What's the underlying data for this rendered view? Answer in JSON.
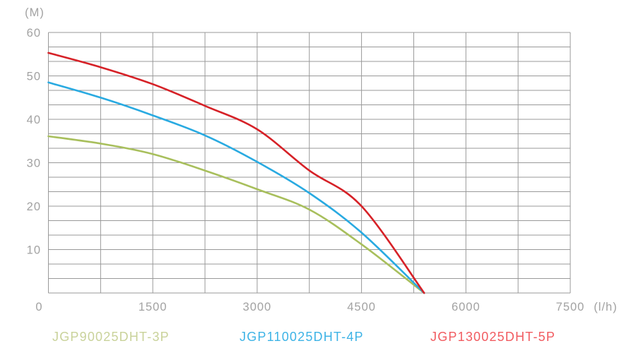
{
  "chart_data": {
    "type": "line",
    "title": "",
    "x_axis": {
      "unit_label": "(l/h)",
      "ticks": [
        0,
        1500,
        3000,
        4500,
        6000,
        7500
      ],
      "min": 0,
      "max": 7500,
      "grid_step": 750
    },
    "y_axis": {
      "unit_label": "(M)",
      "ticks": [
        10,
        20,
        30,
        40,
        50,
        60
      ],
      "min": 0,
      "max": 60,
      "grid_divisions": 18
    },
    "grid_color": "#999999",
    "tick_color": "#a2a2a2",
    "legend_position": "bottom",
    "series": [
      {
        "name": "JGP90025DHT-3P",
        "curve_color": "#a8bf5c",
        "label_color": "#c9d29a",
        "points": [
          [
            0,
            36.1
          ],
          [
            750,
            34.4
          ],
          [
            1500,
            32.0
          ],
          [
            2250,
            28.2
          ],
          [
            3000,
            23.9
          ],
          [
            3750,
            19.2
          ],
          [
            4500,
            11.2
          ],
          [
            5400,
            0
          ]
        ]
      },
      {
        "name": "JGP110025DHT-4P",
        "curve_color": "#29aae1",
        "label_color": "#3db3e6",
        "points": [
          [
            0,
            48.5
          ],
          [
            750,
            45.0
          ],
          [
            1500,
            40.9
          ],
          [
            2250,
            36.3
          ],
          [
            3000,
            30.2
          ],
          [
            3750,
            23.0
          ],
          [
            4500,
            13.9
          ],
          [
            5400,
            0
          ]
        ]
      },
      {
        "name": "JGP130025DHT-5P",
        "curve_color": "#d62127",
        "label_color": "#f15b60",
        "points": [
          [
            0,
            55.3
          ],
          [
            750,
            52.0
          ],
          [
            1500,
            48.1
          ],
          [
            2250,
            43.1
          ],
          [
            3000,
            37.7
          ],
          [
            3750,
            28.2
          ],
          [
            4500,
            20.0
          ],
          [
            5400,
            0
          ]
        ]
      }
    ]
  }
}
